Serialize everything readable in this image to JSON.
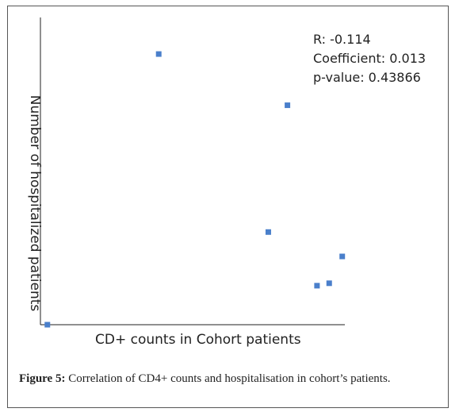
{
  "chart_data": {
    "type": "scatter",
    "xlabel": "CD+ counts in Cohort patients",
    "ylabel": "Number of hospitalized patients",
    "grid": false,
    "points": [
      {
        "x": 0.8,
        "y": 0.0
      },
      {
        "x": 13.6,
        "y": 11.1
      },
      {
        "x": 28.4,
        "y": 9.0
      },
      {
        "x": 26.2,
        "y": 3.8
      },
      {
        "x": 34.7,
        "y": 2.8
      },
      {
        "x": 33.2,
        "y": 1.7
      },
      {
        "x": 31.8,
        "y": 1.6
      }
    ],
    "xlim": [
      0,
      35
    ],
    "ylim": [
      0,
      12.6
    ],
    "color": "#4a7fcb",
    "annotations": [
      "R: -0.114",
      "Coefficient: 0.013",
      "p-value: 0.43866"
    ]
  },
  "caption": {
    "label": "Figure 5:",
    "text": "Correlation of CD4+ counts and hospitalisation in cohort’s patients."
  }
}
